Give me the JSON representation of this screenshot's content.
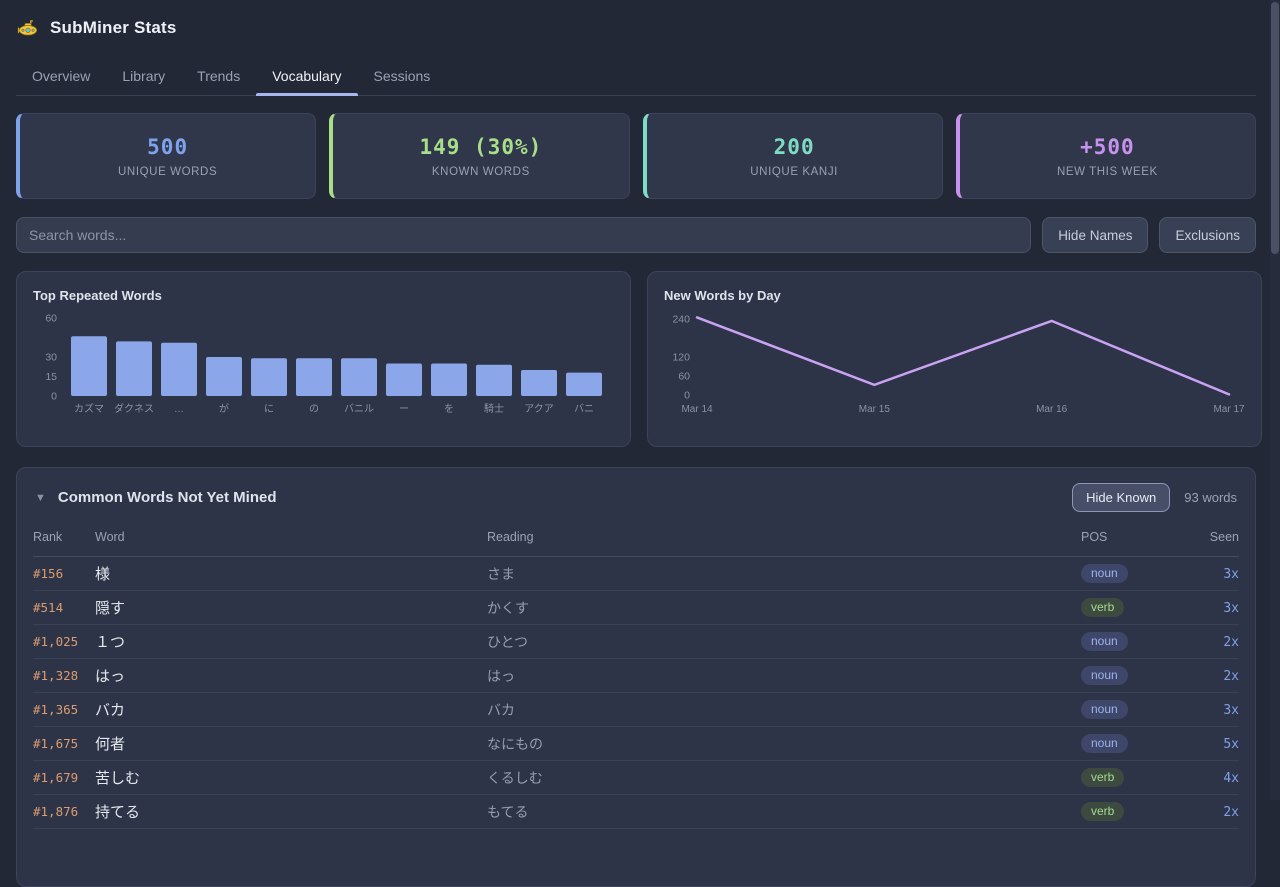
{
  "app": {
    "title": "SubMiner Stats",
    "logo_icon": "submarine-icon"
  },
  "tabs": [
    {
      "label": "Overview",
      "active": false
    },
    {
      "label": "Library",
      "active": false
    },
    {
      "label": "Trends",
      "active": false
    },
    {
      "label": "Vocabulary",
      "active": true
    },
    {
      "label": "Sessions",
      "active": false
    }
  ],
  "stats": [
    {
      "value": "500",
      "label": "UNIQUE WORDS",
      "color": "#7ea2ec"
    },
    {
      "value": "149 (30%)",
      "label": "KNOWN WORDS",
      "color": "#a8de8a"
    },
    {
      "value": "200",
      "label": "UNIQUE KANJI",
      "color": "#7fdcc4"
    },
    {
      "value": "+500",
      "label": "NEW THIS WEEK",
      "color": "#c792ee"
    }
  ],
  "toolbar": {
    "search_placeholder": "Search words...",
    "hide_names_label": "Hide Names",
    "exclusions_label": "Exclusions"
  },
  "chart_data": [
    {
      "type": "bar",
      "title": "Top Repeated Words",
      "categories": [
        "カズマ",
        "ダクネス",
        "…",
        "が",
        "に",
        "の",
        "バニル",
        "ー",
        "を",
        "騎士",
        "アクア",
        "バニ"
      ],
      "values": [
        46,
        42,
        41,
        30,
        29,
        29,
        29,
        25,
        25,
        24,
        20,
        18
      ],
      "xlabel": "",
      "ylabel": "",
      "yticks": [
        0,
        15,
        30,
        60
      ],
      "ylim": [
        0,
        60
      ],
      "grid": false,
      "legend": "none",
      "bar_color": "#8ba6e9",
      "axis_color": "#8b92a6"
    },
    {
      "type": "line",
      "title": "New Words by Day",
      "x": [
        "Mar 14",
        "Mar 15",
        "Mar 16",
        "Mar 17"
      ],
      "values": [
        245,
        32,
        234,
        2
      ],
      "xlabel": "",
      "ylabel": "",
      "yticks": [
        0,
        60,
        120,
        240
      ],
      "ylim": [
        0,
        250
      ],
      "grid": false,
      "legend": "none",
      "line_color": "#c9a2f3",
      "axis_color": "#8b92a6"
    }
  ],
  "word_table": {
    "collapse_icon": "▼",
    "title": "Common Words Not Yet Mined",
    "hide_known_label": "Hide Known",
    "count_label": "93 words",
    "columns": [
      "Rank",
      "Word",
      "Reading",
      "POS",
      "Seen"
    ],
    "rows": [
      {
        "rank": "#156",
        "word": "様",
        "reading": "さま",
        "pos": "noun",
        "seen": "3x"
      },
      {
        "rank": "#514",
        "word": "隠す",
        "reading": "かくす",
        "pos": "verb",
        "seen": "3x"
      },
      {
        "rank": "#1,025",
        "word": "１つ",
        "reading": "ひとつ",
        "pos": "noun",
        "seen": "2x"
      },
      {
        "rank": "#1,328",
        "word": "はっ",
        "reading": "はっ",
        "pos": "noun",
        "seen": "2x"
      },
      {
        "rank": "#1,365",
        "word": "バカ",
        "reading": "バカ",
        "pos": "noun",
        "seen": "3x"
      },
      {
        "rank": "#1,675",
        "word": "何者",
        "reading": "なにもの",
        "pos": "noun",
        "seen": "5x"
      },
      {
        "rank": "#1,679",
        "word": "苦しむ",
        "reading": "くるしむ",
        "pos": "verb",
        "seen": "4x"
      },
      {
        "rank": "#1,876",
        "word": "持てる",
        "reading": "もてる",
        "pos": "verb",
        "seen": "2x"
      }
    ]
  }
}
